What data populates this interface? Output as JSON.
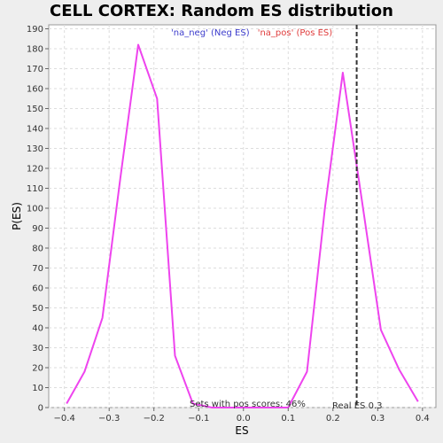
{
  "chart_data": {
    "type": "line",
    "title": "CELL CORTEX: Random ES distribution",
    "xlabel": "ES",
    "ylabel": "P(ES)",
    "xlim": [
      -0.435,
      0.43
    ],
    "ylim": [
      0,
      192
    ],
    "xticks": [
      -0.4,
      -0.3,
      -0.2,
      -0.1,
      0.0,
      0.1,
      0.2,
      0.3,
      0.4
    ],
    "xtick_labels": [
      "−0.4",
      "−0.3",
      "−0.2",
      "−0.1",
      "0.0",
      "0.1",
      "0.2",
      "0.3",
      "0.4"
    ],
    "yticks": [
      0,
      10,
      20,
      30,
      40,
      50,
      60,
      70,
      80,
      90,
      100,
      110,
      120,
      130,
      140,
      150,
      160,
      170,
      180,
      190
    ],
    "grid": true,
    "series": [
      {
        "color": "#ee44ee",
        "x": [
          -0.395,
          -0.355,
          -0.315,
          -0.275,
          -0.235,
          -0.193,
          -0.153,
          -0.113,
          -0.07,
          0.0,
          0.1,
          0.142,
          0.182,
          0.222,
          0.262,
          0.307,
          0.348,
          0.39
        ],
        "y": [
          2,
          18,
          45,
          115,
          182,
          155,
          26,
          2,
          0,
          0,
          0,
          18,
          100,
          168,
          108,
          39,
          19,
          3
        ]
      }
    ],
    "legend": {
      "placement": "top-center",
      "entries": [
        {
          "label": "'na_neg' (Neg ES)",
          "color": "#3c3ccc"
        },
        {
          "label": "'na_pos' (Pos ES)",
          "color": "#e03c3c"
        }
      ]
    },
    "reference_line": {
      "x": 0.253,
      "style": "dashed",
      "color": "#333333"
    },
    "annotations": {
      "pos_scores": "Sets with pos scores: 46%",
      "real_es": "Real ES 0.3"
    }
  }
}
